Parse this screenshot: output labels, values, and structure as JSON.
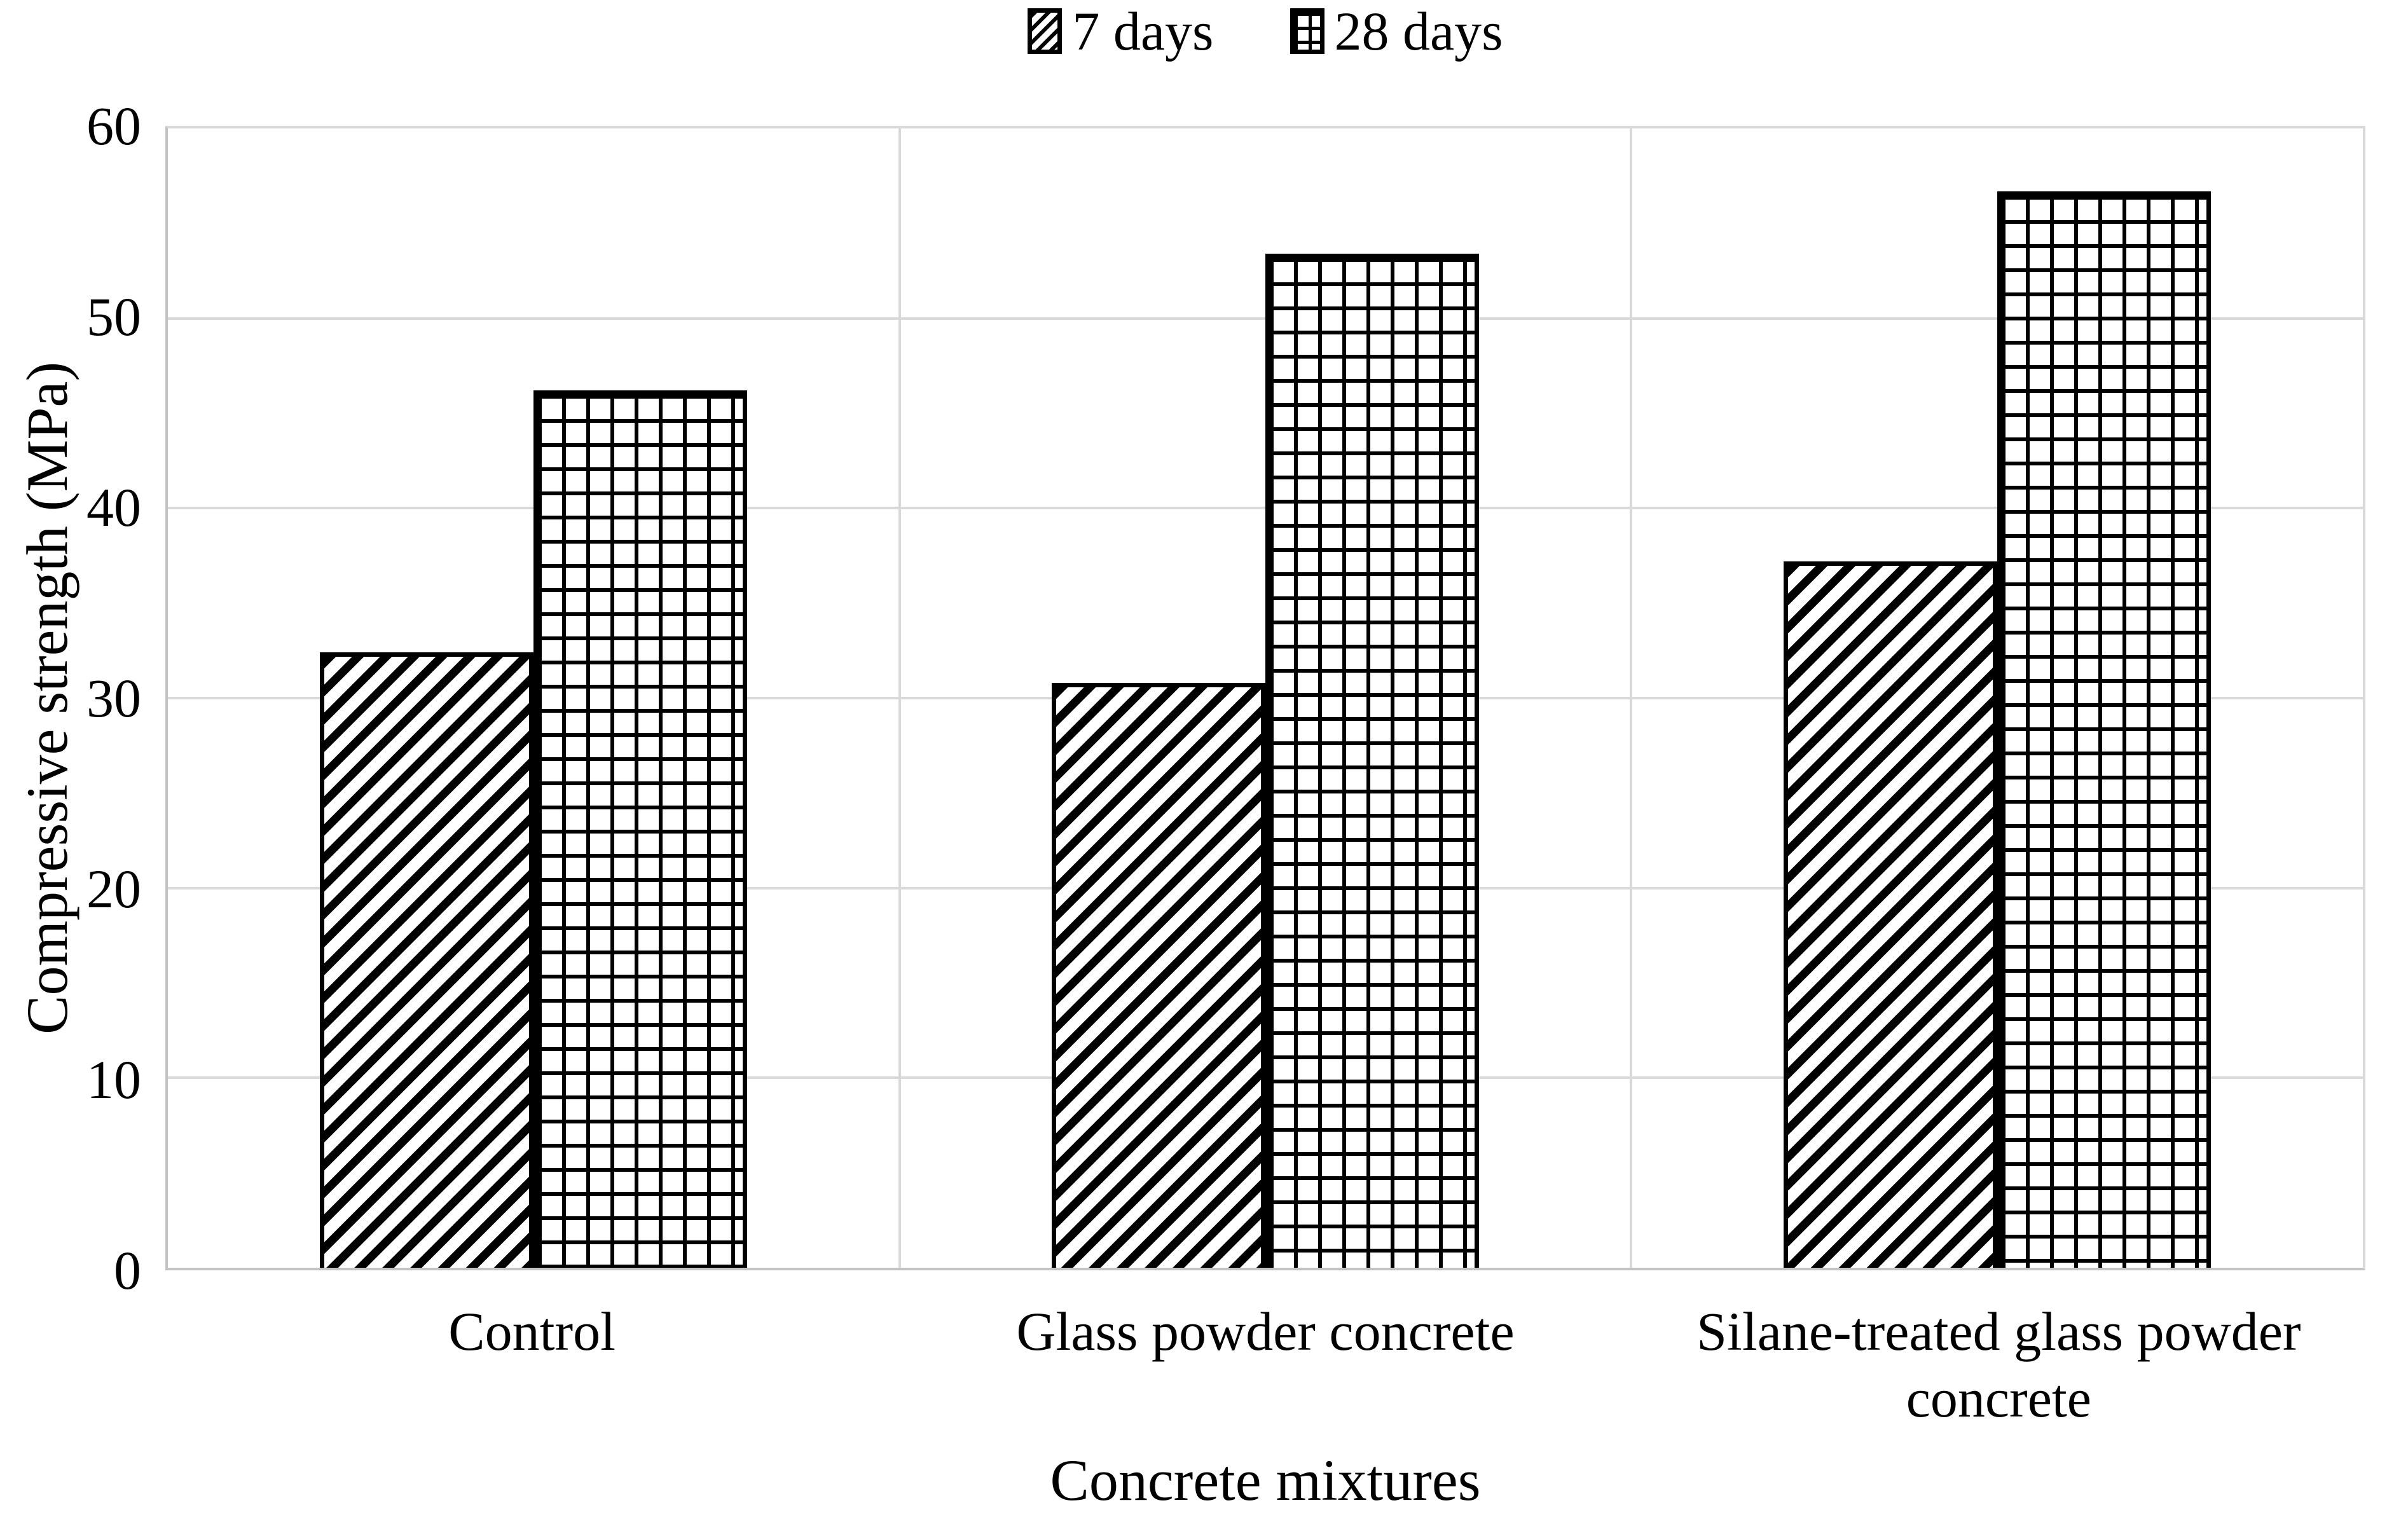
{
  "figure": {
    "background": "#ffffff"
  },
  "legend": {
    "position": "top-center",
    "items": [
      {
        "label": "7 days",
        "pattern": "diagonal-hatch"
      },
      {
        "label": "28 days",
        "pattern": "grid"
      }
    ]
  },
  "y_axis": {
    "title": "Compressive strength (MPa)",
    "min": 0,
    "max": 60,
    "tick_step": 10,
    "ticks": [
      0,
      10,
      20,
      30,
      40,
      50,
      60
    ]
  },
  "x_axis": {
    "title": "Concrete mixtures"
  },
  "chart_data": {
    "type": "bar",
    "title": "",
    "categories": [
      "Control",
      "Glass powder concrete",
      "Silane-treated glass powder concrete"
    ],
    "series": [
      {
        "name": "7 days",
        "pattern": "diagonal-hatch",
        "values": [
          32.4,
          30.8,
          37.2
        ]
      },
      {
        "name": "28 days",
        "pattern": "grid",
        "values": [
          46.2,
          53.4,
          56.7
        ]
      }
    ],
    "xlabel": "Concrete mixtures",
    "ylabel": "Compressive strength (MPa)",
    "ylim": [
      0,
      60
    ],
    "ytick_step": 10,
    "grid": true,
    "legend_position": "top"
  },
  "colors": {
    "bar_fill": "#ffffff",
    "bar_stroke": "#000000",
    "gridline": "#d9d9d9",
    "axis_line": "#c3c3c3",
    "text": "#000000",
    "background": "#ffffff"
  }
}
